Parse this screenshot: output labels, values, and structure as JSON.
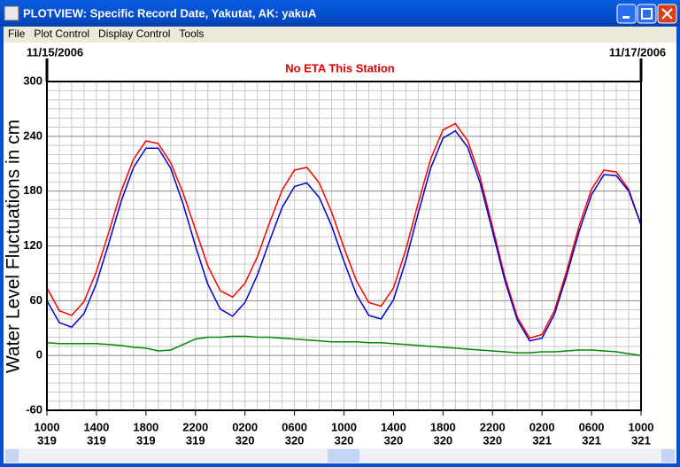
{
  "window": {
    "title": "PLOTVIEW: Specific Record Date, Yakutat, AK: yakuA"
  },
  "menu": [
    "File",
    "Plot Control",
    "Display Control",
    "Tools"
  ],
  "chart_data": {
    "type": "line",
    "start_date": "11/15/2006",
    "end_date": "11/17/2006",
    "annotation": "No ETA This Station",
    "y_label": "Water Level Fluctuations in cm",
    "xlim": [
      0,
      48
    ],
    "ylim": [
      -60,
      300
    ],
    "yticks": [
      -60,
      0,
      60,
      120,
      180,
      240,
      300
    ],
    "xticks": [
      {
        "value": 0,
        "label": "1000"
      },
      {
        "value": 4,
        "label": "1400"
      },
      {
        "value": 8,
        "label": "1800"
      },
      {
        "value": 12,
        "label": "2200"
      },
      {
        "value": 16,
        "label": "0200"
      },
      {
        "value": 20,
        "label": "0600"
      },
      {
        "value": 24,
        "label": "1000"
      },
      {
        "value": 28,
        "label": "1400"
      },
      {
        "value": 32,
        "label": "1800"
      },
      {
        "value": 36,
        "label": "2200"
      },
      {
        "value": 40,
        "label": "0200"
      },
      {
        "value": 44,
        "label": "0600"
      },
      {
        "value": 48,
        "label": "1000"
      }
    ],
    "xtick_days": [
      "319",
      "319",
      "319",
      "319",
      "320",
      "320",
      "320",
      "320",
      "320",
      "320",
      "321",
      "321",
      "321"
    ],
    "grid": true,
    "x": [
      0,
      1,
      2,
      3,
      4,
      5,
      6,
      7,
      8,
      9,
      10,
      11,
      12,
      13,
      14,
      15,
      16,
      17,
      18,
      19,
      20,
      21,
      22,
      23,
      24,
      25,
      26,
      27,
      28,
      29,
      30,
      31,
      32,
      33,
      34,
      35,
      36,
      37,
      38,
      39,
      40,
      41,
      42,
      43,
      44,
      45,
      46,
      47,
      48
    ],
    "series": [
      {
        "color": "#ff0000",
        "values": [
          74,
          49,
          44,
          59,
          92,
          135,
          180,
          215,
          235,
          232,
          211,
          178,
          138,
          98,
          71,
          64,
          79,
          108,
          146,
          181,
          203,
          206,
          189,
          157,
          118,
          82,
          58,
          54,
          74,
          116,
          167,
          215,
          247,
          254,
          235,
          195,
          141,
          86,
          42,
          19,
          23,
          49,
          93,
          142,
          182,
          203,
          201,
          182,
          143
        ]
      },
      {
        "color": "#0000cc",
        "values": [
          60,
          36,
          31,
          46,
          79,
          123,
          169,
          206,
          227,
          227,
          205,
          166,
          120,
          78,
          51,
          43,
          58,
          88,
          126,
          162,
          185,
          189,
          173,
          142,
          103,
          67,
          44,
          40,
          61,
          104,
          156,
          205,
          238,
          246,
          228,
          189,
          136,
          82,
          39,
          16,
          19,
          45,
          88,
          136,
          176,
          198,
          197,
          180,
          143
        ]
      },
      {
        "color": "#008800",
        "values": [
          14,
          13,
          13,
          13,
          13,
          12,
          11,
          9,
          8,
          5,
          6,
          12,
          18,
          20,
          20,
          21,
          21,
          20,
          20,
          19,
          18,
          17,
          16,
          15,
          15,
          15,
          14,
          14,
          13,
          12,
          11,
          10,
          9,
          8,
          7,
          6,
          5,
          4,
          3,
          3,
          4,
          4,
          5,
          6,
          6,
          5,
          4,
          2,
          0
        ]
      }
    ]
  }
}
